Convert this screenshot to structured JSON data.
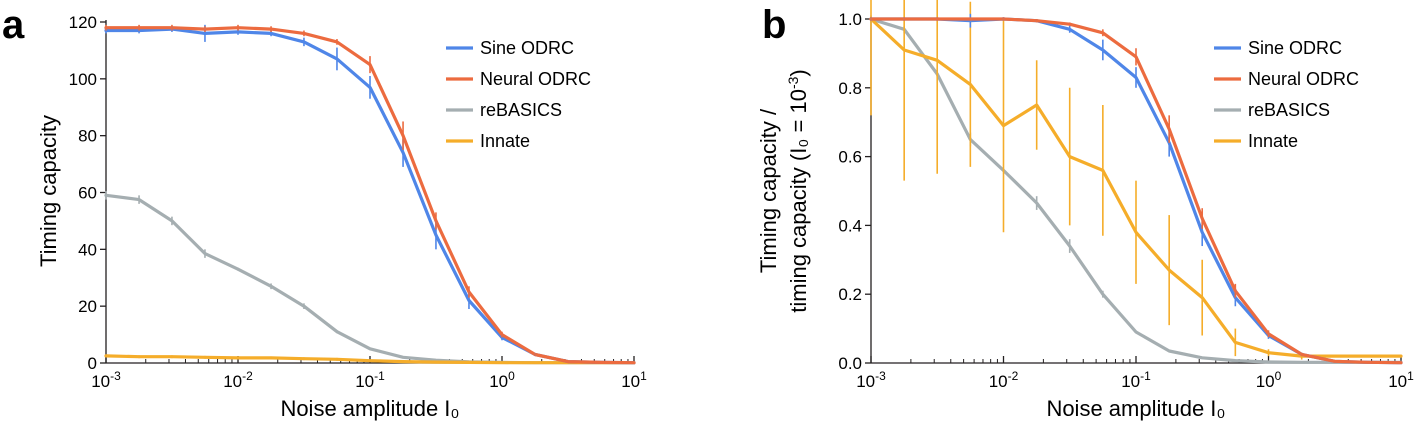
{
  "chart_data": [
    {
      "panel": "a",
      "type": "line",
      "xlabel": "Noise amplitude I₀",
      "ylabel": "Timing capacity",
      "xscale": "log",
      "xlim": [
        0.001,
        10
      ],
      "ylim": [
        0,
        120
      ],
      "xticks": [
        0.001,
        0.01,
        0.1,
        1,
        10
      ],
      "xtick_labels": [
        {
          "base": "10",
          "exp": "-3"
        },
        {
          "base": "10",
          "exp": "-2"
        },
        {
          "base": "10",
          "exp": "-1"
        },
        {
          "base": "10",
          "exp": "0"
        },
        {
          "base": "10",
          "exp": "1"
        }
      ],
      "yticks": [
        0,
        20,
        40,
        60,
        80,
        100,
        120
      ],
      "ytick_labels": [
        "0",
        "20",
        "40",
        "60",
        "80",
        "100",
        "120"
      ],
      "legend_position": "top-right",
      "x": [
        0.001,
        0.00178,
        0.00316,
        0.00562,
        0.01,
        0.0178,
        0.0316,
        0.0562,
        0.1,
        0.178,
        0.316,
        0.562,
        1,
        1.78,
        3.16,
        5.62,
        10
      ],
      "series": [
        {
          "name": "Sine ODRC",
          "color": "#4f86e8",
          "values": [
            117,
            117,
            117.5,
            116,
            116.5,
            116,
            113,
            107,
            97,
            74,
            45,
            22,
            9,
            3,
            0.5,
            0.2,
            0.1
          ],
          "errors": [
            1,
            1,
            1,
            3,
            1,
            1,
            1.5,
            4,
            4,
            5,
            5,
            3,
            1,
            0.5,
            0,
            0,
            0
          ]
        },
        {
          "name": "Neural ODRC",
          "color": "#ec6b3f",
          "values": [
            118,
            118,
            118,
            117.5,
            118,
            117.5,
            116,
            113,
            105,
            80,
            50,
            25,
            10,
            3,
            0.5,
            0.2,
            0.1
          ],
          "errors": [
            1,
            1,
            1,
            1,
            1,
            1,
            1,
            1,
            3,
            5,
            3,
            2,
            1,
            0.5,
            0,
            0,
            0
          ]
        },
        {
          "name": "reBASICS",
          "color": "#a5aeb1",
          "values": [
            59,
            57.5,
            50,
            38.5,
            33,
            27,
            20,
            11,
            5,
            2,
            1,
            0.4,
            0.2,
            0.1,
            0.1,
            0.1,
            0.1
          ],
          "errors": [
            1.5,
            1.5,
            1.5,
            1.5,
            0.5,
            1,
            1,
            0.5,
            0,
            0,
            0,
            0,
            0,
            0,
            0,
            0,
            0
          ]
        },
        {
          "name": "Innate",
          "color": "#f5ad2a",
          "values": [
            2.5,
            2.2,
            2.2,
            2,
            1.8,
            1.8,
            1.5,
            1.3,
            0.8,
            0.5,
            0.3,
            0.2,
            0.1,
            0.1,
            0.1,
            0.1,
            0.1
          ],
          "errors": [
            0.5,
            0.5,
            0.5,
            0.5,
            0.5,
            0.5,
            0.5,
            0.5,
            0.3,
            0.3,
            0.2,
            0.1,
            0,
            0,
            0,
            0,
            0
          ]
        }
      ]
    },
    {
      "panel": "b",
      "type": "line",
      "xlabel": "Noise amplitude I₀",
      "ylabel_line1": "Timing capacity /",
      "ylabel_line2_main": "timing capacity (I₀ = 10",
      "ylabel_line2_exp": "-3",
      "ylabel_line2_end": ")",
      "xscale": "log",
      "xlim": [
        0.001,
        10
      ],
      "ylim": [
        0,
        1
      ],
      "xticks": [
        0.001,
        0.01,
        0.1,
        1,
        10
      ],
      "xtick_labels": [
        {
          "base": "10",
          "exp": "-3"
        },
        {
          "base": "10",
          "exp": "-2"
        },
        {
          "base": "10",
          "exp": "-1"
        },
        {
          "base": "10",
          "exp": "0"
        },
        {
          "base": "10",
          "exp": "1"
        }
      ],
      "yticks": [
        0,
        0.2,
        0.4,
        0.6,
        0.8,
        1.0
      ],
      "ytick_labels": [
        "0.0",
        "0.2",
        "0.4",
        "0.6",
        "0.8",
        "1.0"
      ],
      "legend_position": "top-right",
      "x": [
        0.001,
        0.00178,
        0.00316,
        0.00562,
        0.01,
        0.0178,
        0.0316,
        0.0562,
        0.1,
        0.178,
        0.316,
        0.562,
        1,
        1.78,
        3.16,
        5.62,
        10
      ],
      "series": [
        {
          "name": "Sine ODRC",
          "color": "#4f86e8",
          "values": [
            1.0,
            1.0,
            1.0,
            0.995,
            1.0,
            0.995,
            0.97,
            0.91,
            0.83,
            0.64,
            0.38,
            0.19,
            0.08,
            0.025,
            0.005,
            0.002,
            0.001
          ],
          "errors": [
            0.005,
            0.005,
            0.005,
            0.02,
            0.005,
            0.005,
            0.01,
            0.03,
            0.03,
            0.04,
            0.04,
            0.025,
            0.01,
            0.005,
            0,
            0,
            0
          ]
        },
        {
          "name": "Neural ODRC",
          "color": "#ec6b3f",
          "values": [
            1.0,
            1.0,
            1.0,
            1.0,
            1.0,
            0.995,
            0.985,
            0.96,
            0.89,
            0.68,
            0.42,
            0.21,
            0.085,
            0.025,
            0.005,
            0.002,
            0.001
          ],
          "errors": [
            0.005,
            0.005,
            0.005,
            0.005,
            0.005,
            0.005,
            0.005,
            0.01,
            0.025,
            0.04,
            0.03,
            0.02,
            0.01,
            0.005,
            0,
            0,
            0
          ]
        },
        {
          "name": "reBASICS",
          "color": "#a5aeb1",
          "values": [
            1.0,
            0.97,
            0.84,
            0.65,
            0.56,
            0.465,
            0.34,
            0.2,
            0.09,
            0.035,
            0.015,
            0.007,
            0.003,
            0.002,
            0.002,
            0.002,
            0.002
          ],
          "errors": [
            0.01,
            0.01,
            0.01,
            0.02,
            0.005,
            0.02,
            0.02,
            0.01,
            0,
            0,
            0,
            0,
            0,
            0,
            0,
            0,
            0
          ]
        },
        {
          "name": "Innate",
          "color": "#f5ad2a",
          "values": [
            1.0,
            0.91,
            0.88,
            0.81,
            0.69,
            0.75,
            0.6,
            0.56,
            0.38,
            0.27,
            0.19,
            0.06,
            0.03,
            0.02,
            0.02,
            0.02,
            0.02
          ],
          "errors": [
            0.28,
            0.38,
            0.33,
            0.24,
            0.31,
            0.13,
            0.2,
            0.19,
            0.15,
            0.16,
            0.11,
            0.04,
            0.01,
            0.01,
            0,
            0,
            0
          ]
        }
      ]
    }
  ]
}
